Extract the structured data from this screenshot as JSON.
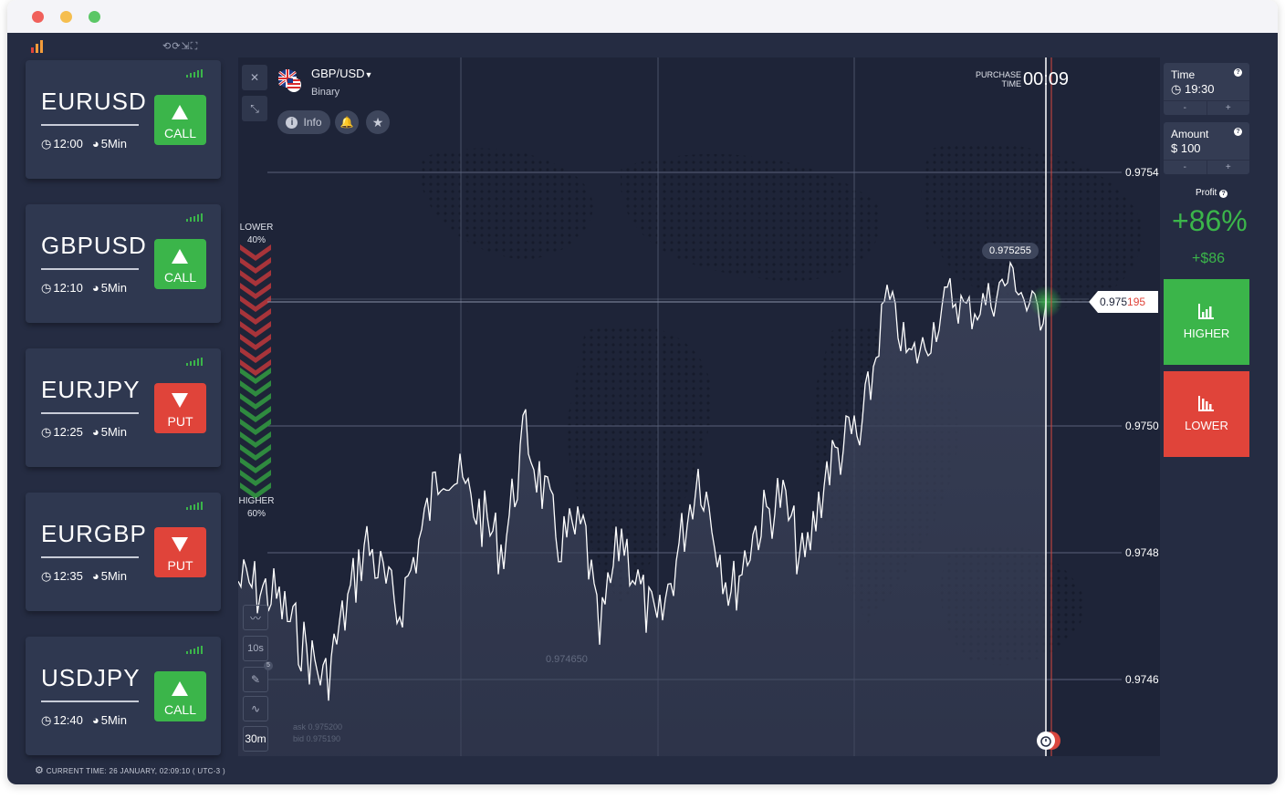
{
  "sidebar": {
    "cards": [
      {
        "symbol": "EURUSD",
        "time": "12:00",
        "duration": "5Min",
        "action": "CALL",
        "direction": "up"
      },
      {
        "symbol": "GBPUSD",
        "time": "12:10",
        "duration": "5Min",
        "action": "CALL",
        "direction": "up"
      },
      {
        "symbol": "EURJPY",
        "time": "12:25",
        "duration": "5Min",
        "action": "PUT",
        "direction": "down"
      },
      {
        "symbol": "EURGBP",
        "time": "12:35",
        "duration": "5Min",
        "action": "PUT",
        "direction": "down"
      },
      {
        "symbol": "USDJPY",
        "time": "12:40",
        "duration": "5Min",
        "action": "CALL",
        "direction": "up"
      }
    ],
    "current_time": "CURRENT TIME: 26 JANUARY, 02:09:10 ( UTC-3 )"
  },
  "chart_header": {
    "pair": "GBP/USD",
    "type": "Binary",
    "info_label": "Info",
    "purchase_label_1": "PURCHASE",
    "purchase_label_2": "TIME",
    "purchase_time": "00:09"
  },
  "chart_side": {
    "lower_label": "LOWER",
    "lower_pct": "40%",
    "higher_label": "HIGHER",
    "higher_pct": "60%"
  },
  "chart_tools": {
    "interval_10s": "10s",
    "interval_30m": "30m",
    "badge_count": "5"
  },
  "chart_data": {
    "type": "area",
    "y_ticks": [
      "0.9754",
      "0.9750",
      "0.9748",
      "0.9746"
    ],
    "current_price_prefix": "0.975",
    "current_price_suffix": "195",
    "peak_label": "0.975255",
    "low_label": "0.974650",
    "ask": "ask 0.975200",
    "bid": "bid 0.975190"
  },
  "right_panel": {
    "time_label": "Time",
    "time_value": "19:30",
    "amount_label": "Amount",
    "amount_value": "$  100",
    "minus": "-",
    "plus": "+",
    "profit_label": "Profit",
    "profit_pct": "+86%",
    "profit_amount": "+$86",
    "higher_button": "HIGHER",
    "lower_button": "LOWER"
  },
  "colors": {
    "green": "#3bb54a",
    "red": "#e0443a",
    "background": "#252c42"
  }
}
